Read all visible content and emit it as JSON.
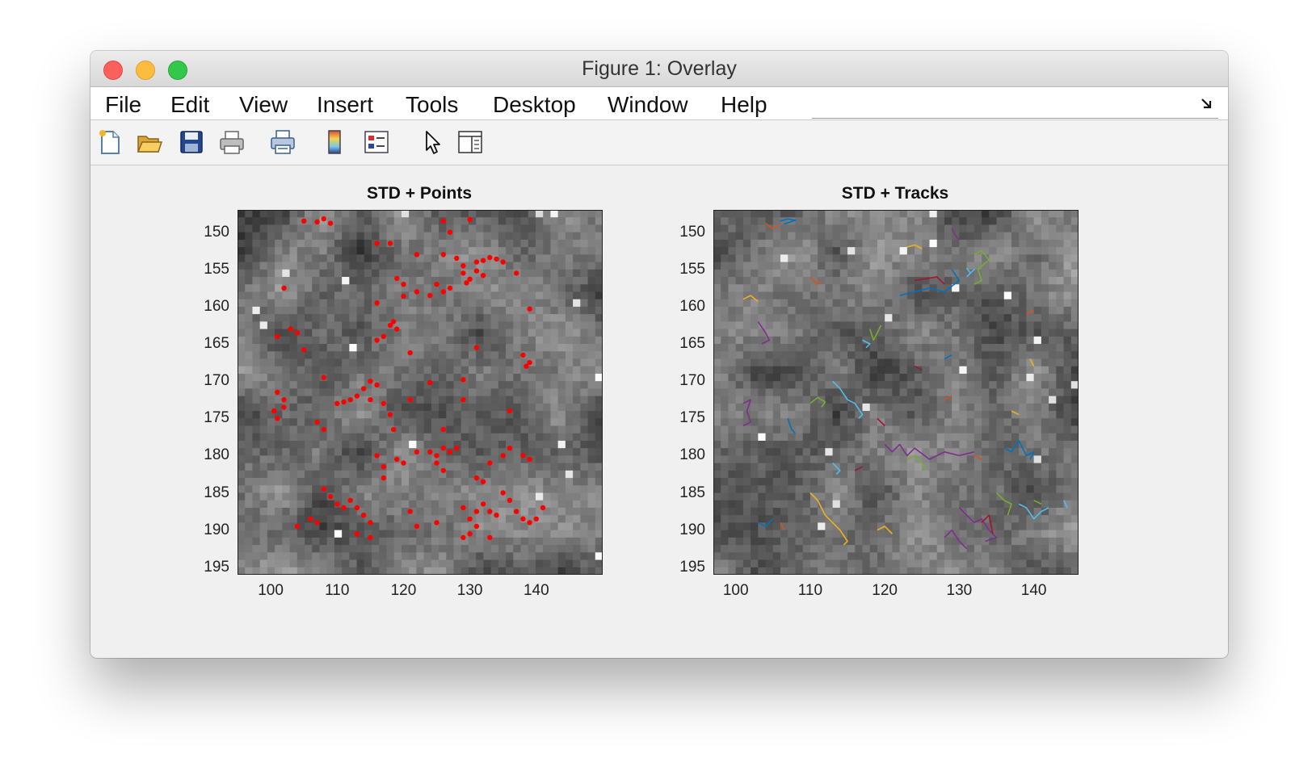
{
  "window": {
    "title": "Figure 1: Overlay"
  },
  "menu": {
    "items": [
      "File",
      "Edit",
      "View",
      "Insert",
      "Tools",
      "Desktop",
      "Window",
      "Help"
    ]
  },
  "toolbar": {
    "icons": [
      "new-figure-icon",
      "open-file-icon",
      "save-icon",
      "print-icon",
      "print-preview-icon",
      "colorbar-icon",
      "legend-icon",
      "select-pointer-icon",
      "property-editor-icon"
    ]
  },
  "chart_data": [
    {
      "type": "scatter",
      "title": "STD + Points",
      "background": "grayscale standard-deviation image",
      "xlim": [
        95,
        150
      ],
      "ylim": [
        147,
        196
      ],
      "y_reversed": true,
      "x_ticks": [
        "100",
        "110",
        "120",
        "130",
        "140"
      ],
      "y_ticks": [
        "150",
        "155",
        "160",
        "165",
        "170",
        "175",
        "180",
        "185",
        "190",
        "195"
      ],
      "marker_color": "#ff0000",
      "points": [
        [
          105,
          148.5
        ],
        [
          107,
          148.6
        ],
        [
          108,
          148.2
        ],
        [
          109,
          148.8
        ],
        [
          126,
          148.5
        ],
        [
          127,
          150
        ],
        [
          130,
          148.3
        ],
        [
          116,
          151.5
        ],
        [
          118,
          151.5
        ],
        [
          122,
          153
        ],
        [
          126,
          153
        ],
        [
          128,
          153.5
        ],
        [
          129,
          154.5
        ],
        [
          131,
          154
        ],
        [
          132,
          153.8
        ],
        [
          133,
          153.4
        ],
        [
          134,
          153.6
        ],
        [
          135,
          154
        ],
        [
          129,
          155.5
        ],
        [
          130,
          156.3
        ],
        [
          131,
          155.2
        ],
        [
          129.5,
          156.8
        ],
        [
          132,
          155.8
        ],
        [
          137,
          155.5
        ],
        [
          119,
          156.2
        ],
        [
          120,
          157
        ],
        [
          122,
          158
        ],
        [
          124,
          158.5
        ],
        [
          126,
          158
        ],
        [
          127,
          157.5
        ],
        [
          120,
          158.6
        ],
        [
          125,
          157
        ],
        [
          102,
          157.5
        ],
        [
          116,
          159.5
        ],
        [
          139,
          160.3
        ],
        [
          101,
          164
        ],
        [
          103,
          163
        ],
        [
          104,
          163.5
        ],
        [
          105,
          165.8
        ],
        [
          118,
          162.5
        ],
        [
          119,
          163
        ],
        [
          118.5,
          162
        ],
        [
          117,
          164
        ],
        [
          116,
          164.5
        ],
        [
          121,
          166.2
        ],
        [
          131,
          165.5
        ],
        [
          138,
          166.5
        ],
        [
          139,
          167.5
        ],
        [
          138.5,
          168
        ],
        [
          108,
          169.5
        ],
        [
          113,
          172
        ],
        [
          115,
          170
        ],
        [
          116,
          170.5
        ],
        [
          114,
          171
        ],
        [
          117,
          173
        ],
        [
          115,
          172.5
        ],
        [
          111,
          172.8
        ],
        [
          112,
          172.5
        ],
        [
          110,
          173
        ],
        [
          124,
          170.2
        ],
        [
          129,
          169.8
        ],
        [
          101,
          171.5
        ],
        [
          102,
          172.5
        ],
        [
          100.5,
          174
        ],
        [
          101,
          175
        ],
        [
          102,
          173.5
        ],
        [
          107,
          175.5
        ],
        [
          108,
          176.5
        ],
        [
          118,
          174.5
        ],
        [
          118.5,
          176.5
        ],
        [
          121,
          172.5
        ],
        [
          126,
          176.5
        ],
        [
          129,
          172.5
        ],
        [
          136,
          174
        ],
        [
          116,
          180
        ],
        [
          117,
          181.5
        ],
        [
          119,
          180.5
        ],
        [
          120,
          181
        ],
        [
          122,
          179.5
        ],
        [
          124,
          179.5
        ],
        [
          125,
          180
        ],
        [
          126,
          179
        ],
        [
          127,
          179.5
        ],
        [
          128,
          179
        ],
        [
          125,
          181
        ],
        [
          126,
          182
        ],
        [
          133,
          181
        ],
        [
          135,
          180
        ],
        [
          136,
          179
        ],
        [
          138,
          180
        ],
        [
          139,
          180.5
        ],
        [
          131,
          183
        ],
        [
          132,
          183.5
        ],
        [
          117,
          183
        ],
        [
          108,
          184.5
        ],
        [
          109,
          185.5
        ],
        [
          110,
          186.5
        ],
        [
          111,
          187
        ],
        [
          112,
          186
        ],
        [
          113,
          187
        ],
        [
          114,
          188
        ],
        [
          115,
          189
        ],
        [
          113,
          190.5
        ],
        [
          115,
          191
        ],
        [
          121,
          187.5
        ],
        [
          122,
          189.5
        ],
        [
          125,
          189
        ],
        [
          129,
          187
        ],
        [
          131,
          187.5
        ],
        [
          132,
          186.5
        ],
        [
          133,
          187.5
        ],
        [
          134,
          188
        ],
        [
          135,
          185
        ],
        [
          136,
          186
        ],
        [
          137,
          187.5
        ],
        [
          138,
          188.5
        ],
        [
          139,
          189
        ],
        [
          140,
          188.5
        ],
        [
          141,
          187
        ],
        [
          130,
          188.5
        ],
        [
          131,
          189.5
        ],
        [
          133,
          191
        ],
        [
          104,
          189.5
        ],
        [
          106,
          188.5
        ],
        [
          107,
          189
        ],
        [
          129,
          191
        ],
        [
          130,
          190.5
        ]
      ]
    },
    {
      "type": "line",
      "title": "STD + Tracks",
      "background": "grayscale standard-deviation image",
      "xlim": [
        97,
        146
      ],
      "ylim": [
        147,
        196
      ],
      "y_reversed": true,
      "x_ticks": [
        "100",
        "110",
        "120",
        "130",
        "140"
      ],
      "y_ticks": [
        "150",
        "155",
        "160",
        "165",
        "170",
        "175",
        "180",
        "185",
        "190",
        "195"
      ],
      "series_colors": [
        "#0072bd",
        "#d95319",
        "#edb120",
        "#7e2f8e",
        "#77ac30",
        "#4dbeee",
        "#a2142f"
      ],
      "tracks": [
        [
          [
            106,
            148.5
          ],
          [
            107,
            148.2
          ],
          [
            108,
            148.4
          ],
          [
            106.5,
            148.9
          ]
        ],
        [
          [
            104,
            148.8
          ],
          [
            105,
            149.5
          ],
          [
            106,
            149
          ]
        ],
        [
          [
            123,
            152
          ],
          [
            124,
            151.7
          ],
          [
            125,
            152.2
          ]
        ],
        [
          [
            129,
            149.5
          ],
          [
            129.5,
            150.5
          ],
          [
            130,
            151
          ]
        ],
        [
          [
            132,
            153
          ],
          [
            133,
            152.5
          ],
          [
            134,
            153.7
          ],
          [
            132.5,
            155
          ],
          [
            133,
            156.5
          ],
          [
            132,
            157
          ]
        ],
        [
          [
            131,
            154.8
          ],
          [
            131.5,
            155.5
          ],
          [
            132,
            155
          ],
          [
            131,
            156
          ]
        ],
        [
          [
            124,
            156.5
          ],
          [
            127,
            156
          ],
          [
            128,
            157
          ]
        ],
        [
          [
            122,
            158.5
          ],
          [
            124,
            158
          ],
          [
            126,
            157.5
          ],
          [
            128,
            158
          ],
          [
            130,
            156.5
          ],
          [
            129,
            155
          ]
        ],
        [
          [
            110,
            156
          ],
          [
            111,
            157
          ],
          [
            111.5,
            156.5
          ]
        ],
        [
          [
            101,
            159
          ],
          [
            102,
            158.5
          ],
          [
            103,
            159.3
          ]
        ],
        [
          [
            103,
            162
          ],
          [
            104,
            163.5
          ],
          [
            104.5,
            164.5
          ],
          [
            103.5,
            165
          ]
        ],
        [
          [
            118,
            163
          ],
          [
            118.5,
            164.5
          ],
          [
            119,
            163.5
          ],
          [
            119.5,
            162.5
          ]
        ],
        [
          [
            117,
            164.5
          ],
          [
            118,
            165
          ],
          [
            117.5,
            165.5
          ]
        ],
        [
          [
            124,
            168
          ],
          [
            125,
            168.5
          ]
        ],
        [
          [
            128,
            167
          ],
          [
            129,
            166.5
          ]
        ],
        [
          [
            139,
            161
          ],
          [
            140,
            160.5
          ]
        ],
        [
          [
            139.5,
            167
          ],
          [
            140,
            168
          ]
        ],
        [
          [
            101,
            173
          ],
          [
            102,
            172.5
          ],
          [
            101.5,
            174
          ],
          [
            102,
            175.5
          ],
          [
            101,
            176
          ]
        ],
        [
          [
            110,
            173
          ],
          [
            111,
            172.2
          ],
          [
            112,
            172.8
          ],
          [
            111.5,
            173.5
          ]
        ],
        [
          [
            113,
            170
          ],
          [
            114,
            171
          ],
          [
            115,
            172.5
          ],
          [
            116,
            173
          ],
          [
            117,
            174.5
          ],
          [
            116.5,
            175
          ]
        ],
        [
          [
            119,
            175
          ],
          [
            120,
            176
          ]
        ],
        [
          [
            107,
            175
          ],
          [
            107.5,
            176.5
          ],
          [
            108,
            177
          ]
        ],
        [
          [
            128,
            172.5
          ],
          [
            129,
            172
          ]
        ],
        [
          [
            137,
            174
          ],
          [
            138,
            174.5
          ]
        ],
        [
          [
            120,
            178.5
          ],
          [
            121,
            179.5
          ],
          [
            122,
            178.5
          ],
          [
            123,
            180
          ],
          [
            124,
            179
          ],
          [
            126,
            180.5
          ],
          [
            128,
            179.5
          ],
          [
            130,
            180
          ],
          [
            132,
            179.5
          ]
        ],
        [
          [
            123,
            180.5
          ],
          [
            124,
            180
          ],
          [
            125,
            181
          ],
          [
            125.5,
            182
          ]
        ],
        [
          [
            113,
            181
          ],
          [
            114,
            182
          ],
          [
            113.5,
            182.5
          ]
        ],
        [
          [
            116,
            182
          ],
          [
            117,
            181.5
          ]
        ],
        [
          [
            136,
            179
          ],
          [
            137,
            179.5
          ],
          [
            138,
            178
          ],
          [
            139,
            180
          ],
          [
            140,
            179.5
          ],
          [
            139.5,
            180.5
          ]
        ],
        [
          [
            132,
            180
          ],
          [
            133,
            180.5
          ]
        ],
        [
          [
            110,
            185
          ],
          [
            111,
            186
          ],
          [
            112,
            188
          ],
          [
            113,
            189
          ],
          [
            114,
            190
          ],
          [
            115,
            191.5
          ],
          [
            114.5,
            192
          ]
        ],
        [
          [
            130,
            187
          ],
          [
            131,
            188
          ],
          [
            132,
            189
          ],
          [
            133,
            188.5
          ],
          [
            134,
            190
          ],
          [
            135,
            191
          ],
          [
            133.5,
            191.5
          ]
        ],
        [
          [
            135,
            185
          ],
          [
            136,
            186
          ],
          [
            137,
            186.5
          ],
          [
            136.5,
            188
          ]
        ],
        [
          [
            138,
            186.5
          ],
          [
            139,
            187
          ],
          [
            140,
            188.5
          ],
          [
            141,
            187.5
          ],
          [
            142,
            187
          ]
        ],
        [
          [
            133,
            189
          ],
          [
            134,
            188
          ],
          [
            134.5,
            190.5
          ]
        ],
        [
          [
            103,
            189
          ],
          [
            104,
            189.5
          ],
          [
            105,
            188.5
          ]
        ],
        [
          [
            106,
            189
          ],
          [
            106.5,
            190
          ]
        ],
        [
          [
            119,
            190
          ],
          [
            120,
            189.5
          ],
          [
            121,
            190.5
          ]
        ],
        [
          [
            128,
            191
          ],
          [
            129,
            190
          ],
          [
            130,
            191.5
          ],
          [
            131,
            192.5
          ]
        ],
        [
          [
            140,
            186
          ],
          [
            141,
            186.5
          ]
        ],
        [
          [
            144,
            186
          ],
          [
            144.5,
            187
          ]
        ]
      ]
    }
  ]
}
